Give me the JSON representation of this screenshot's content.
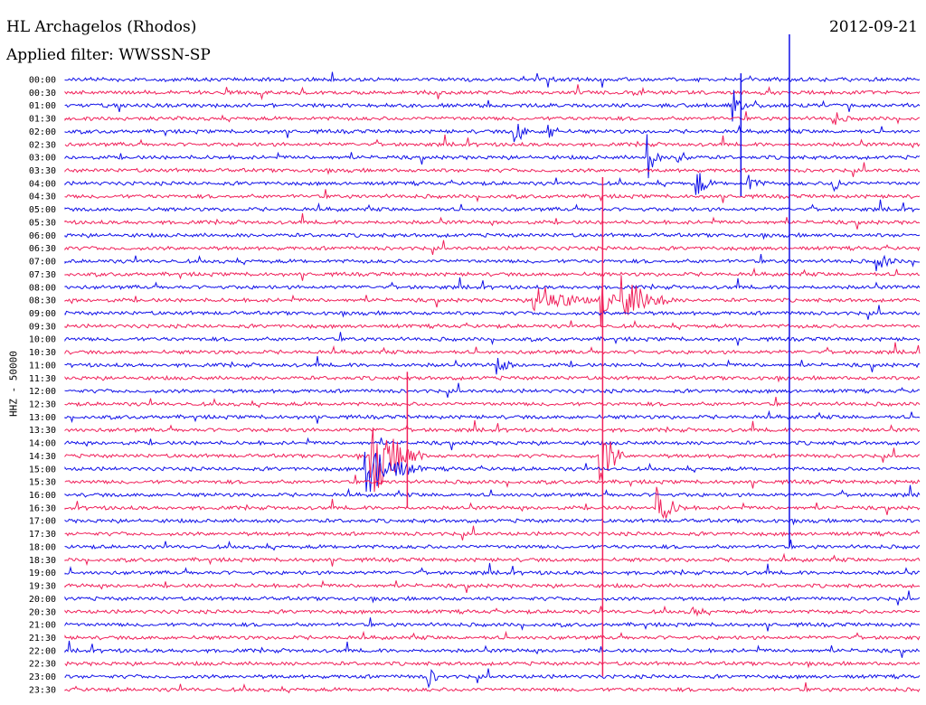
{
  "header": {
    "station": "HL Archagelos (Rhodos)",
    "date": "2012-09-21",
    "filter": "Applied filter: WWSSN-SP",
    "channel": "HHZ - 50000"
  },
  "colors": {
    "blue": "#1010e8",
    "red": "#f0205a"
  },
  "chart_data": {
    "type": "line",
    "title": "HL Archagelos (Rhodos)",
    "ylabel": "HHZ - 50000",
    "rows": [
      "00:00",
      "00:30",
      "01:00",
      "01:30",
      "02:00",
      "02:30",
      "03:00",
      "03:30",
      "04:00",
      "04:30",
      "05:00",
      "05:30",
      "06:00",
      "06:30",
      "07:00",
      "07:30",
      "08:00",
      "08:30",
      "09:00",
      "09:30",
      "10:00",
      "10:30",
      "11:00",
      "11:30",
      "12:00",
      "12:30",
      "13:00",
      "13:30",
      "14:00",
      "14:30",
      "15:00",
      "15:30",
      "16:00",
      "16:30",
      "17:00",
      "17:30",
      "18:00",
      "18:30",
      "19:00",
      "19:30",
      "20:00",
      "20:30",
      "21:00",
      "21:30",
      "22:00",
      "22:30",
      "23:00",
      "23:30"
    ],
    "events": [
      {
        "row": "00:00",
        "minute": 17.0,
        "amp": 7,
        "dur": 0.4
      },
      {
        "row": "00:30",
        "minute": 20.0,
        "amp": 3,
        "dur": 2.0
      },
      {
        "row": "01:00",
        "minute": 23.5,
        "amp": 14,
        "dur": 0.4
      },
      {
        "row": "01:30",
        "minute": 27.0,
        "amp": 8,
        "dur": 0.8
      },
      {
        "row": "02:00",
        "minute": 15.8,
        "amp": 16,
        "dur": 0.5
      },
      {
        "row": "02:00",
        "minute": 17.0,
        "amp": 10,
        "dur": 0.5
      },
      {
        "row": "03:00",
        "minute": 20.5,
        "amp": 20,
        "dur": 0.4
      },
      {
        "row": "03:00",
        "minute": 21.5,
        "amp": 10,
        "dur": 0.6
      },
      {
        "row": "04:00",
        "minute": 22.2,
        "amp": 16,
        "dur": 0.6
      },
      {
        "row": "04:00",
        "minute": 24.0,
        "amp": 12,
        "dur": 0.6
      },
      {
        "row": "04:00",
        "minute": 27.0,
        "amp": 10,
        "dur": 0.6
      },
      {
        "row": "07:00",
        "minute": 28.5,
        "amp": 10,
        "dur": 1.0
      },
      {
        "row": "08:30",
        "minute": 16.5,
        "amp": 22,
        "dur": 2.0
      },
      {
        "row": "08:30",
        "minute": 18.8,
        "amp": 30,
        "dur": 0.5
      },
      {
        "row": "08:30",
        "minute": 19.6,
        "amp": 26,
        "dur": 1.8
      },
      {
        "row": "11:00",
        "minute": 15.2,
        "amp": 10,
        "dur": 0.8
      },
      {
        "row": "14:30",
        "minute": 10.8,
        "amp": 45,
        "dur": 1.8
      },
      {
        "row": "15:00",
        "minute": 10.6,
        "amp": 30,
        "dur": 2.0
      },
      {
        "row": "14:30",
        "minute": 18.8,
        "amp": 36,
        "dur": 0.8
      },
      {
        "row": "16:30",
        "minute": 20.8,
        "amp": 22,
        "dur": 1.0
      },
      {
        "row": "20:30",
        "minute": 22.0,
        "amp": 10,
        "dur": 0.5
      },
      {
        "row": "23:00",
        "minute": 12.8,
        "amp": 10,
        "dur": 0.5
      }
    ]
  }
}
